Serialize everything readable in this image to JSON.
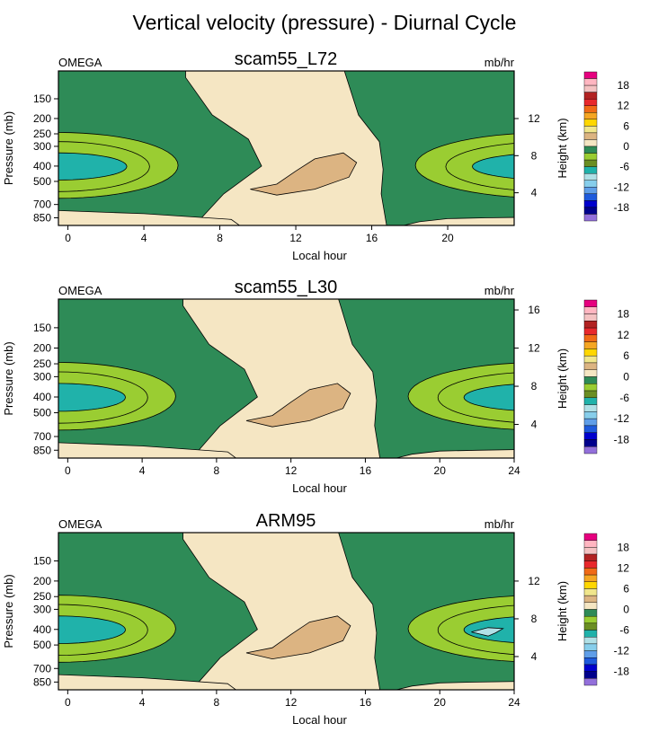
{
  "title": "Vertical velocity (pressure) - Diurnal Cycle",
  "chart_data": [
    {
      "type": "contour",
      "panel_title": "scam55_L72",
      "left_label": "OMEGA",
      "right_label": "mb/hr",
      "xlabel": "Local hour",
      "ylabel": "Pressure (mb)",
      "y2label": "Height (km)",
      "x_ticks": [
        0,
        4,
        8,
        12,
        16,
        20
      ],
      "xlim": [
        -0.5,
        23.5
      ],
      "pressure_ticks": [
        150,
        200,
        250,
        300,
        400,
        500,
        700,
        850
      ],
      "height_ticks": [
        4,
        8,
        12
      ],
      "ylim_mb": [
        100,
        950
      ]
    },
    {
      "type": "contour",
      "panel_title": "scam55_L30",
      "left_label": "OMEGA",
      "right_label": "mb/hr",
      "xlabel": "Local hour",
      "ylabel": "Pressure (mb)",
      "y2label": "Height (km)",
      "x_ticks": [
        0,
        4,
        8,
        12,
        16,
        20,
        24
      ],
      "xlim": [
        -0.5,
        24
      ],
      "pressure_ticks": [
        150,
        200,
        250,
        300,
        400,
        500,
        700,
        850
      ],
      "height_ticks": [
        4,
        8,
        12,
        16
      ],
      "ylim_mb": [
        100,
        950
      ]
    },
    {
      "type": "contour",
      "panel_title": "ARM95",
      "left_label": "OMEGA",
      "right_label": "mb/hr",
      "xlabel": "Local hour",
      "ylabel": "Pressure (mb)",
      "y2label": "Height (km)",
      "x_ticks": [
        0,
        4,
        8,
        12,
        16,
        20,
        24
      ],
      "xlim": [
        -0.5,
        24
      ],
      "pressure_ticks": [
        150,
        200,
        250,
        300,
        400,
        500,
        700,
        850
      ],
      "height_ticks": [
        4,
        8,
        12
      ],
      "ylim_mb": [
        100,
        950
      ]
    }
  ],
  "colorbar": {
    "labels": [
      "18",
      "12",
      "6",
      "0",
      "-6",
      "-12",
      "-18"
    ],
    "colors": [
      "#e6007f",
      "#ffb6c1",
      "#f4c2c2",
      "#b22222",
      "#e8282c",
      "#f06a16",
      "#f5a623",
      "#ffd700",
      "#f0e68c",
      "#dcb482",
      "#f5e6c3",
      "#2e8b57",
      "#9acd32",
      "#6b8e23",
      "#20b2aa",
      "#b0e0e6",
      "#87ceeb",
      "#5f9ee8",
      "#1e5adc",
      "#0000cd",
      "#00008b",
      "#9370db"
    ]
  },
  "contour_colors": {
    "tan": "#f5e6c3",
    "brown": "#dcb482",
    "green": "#2e8b57",
    "yellowgreen": "#9acd32",
    "teal": "#20b2aa",
    "lightblue": "#b0e0e6"
  }
}
